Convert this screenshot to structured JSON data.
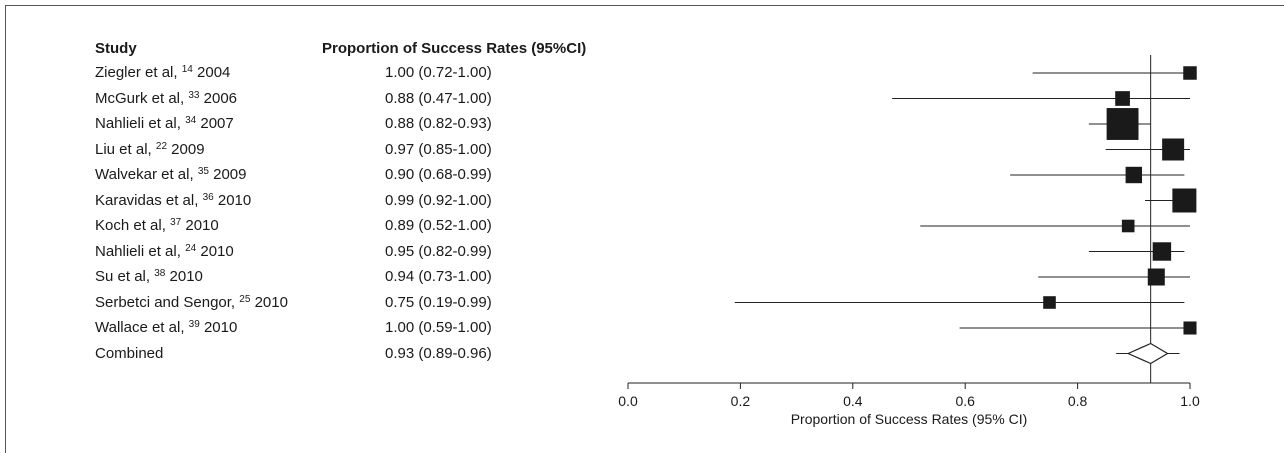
{
  "chart_data": {
    "type": "forest",
    "headers": {
      "study": "Study",
      "estimate": "Proportion of Success Rates (95%CI)"
    },
    "xlabel": "Proportion of Success Rates (95% CI)",
    "xlim": [
      0.0,
      1.0
    ],
    "xticks": [
      "0.0",
      "0.2",
      "0.4",
      "0.6",
      "0.8",
      "1.0"
    ],
    "reference_line": 0.93,
    "studies": [
      {
        "author": "Ziegler et al,",
        "ref": "14",
        "year": "2004",
        "estimate_text": "1.00 (0.72-1.00)",
        "estimate": 1.0,
        "lower": 0.72,
        "upper": 1.0,
        "weight": 1
      },
      {
        "author": "McGurk et al,",
        "ref": "33",
        "year": "2006",
        "estimate_text": "0.88 (0.47-1.00)",
        "estimate": 0.88,
        "lower": 0.47,
        "upper": 1.0,
        "weight": 1.3
      },
      {
        "author": "Nahlieli et al,",
        "ref": "34",
        "year": "2007",
        "estimate_text": "0.88 (0.82-0.93)",
        "estimate": 0.88,
        "lower": 0.82,
        "upper": 0.93,
        "weight": 10
      },
      {
        "author": "Liu et al,",
        "ref": "22",
        "year": "2009",
        "estimate_text": "0.97 (0.85-1.00)",
        "estimate": 0.97,
        "lower": 0.85,
        "upper": 1.0,
        "weight": 4
      },
      {
        "author": "Walvekar et al,",
        "ref": "35",
        "year": "2009",
        "estimate_text": "0.90 (0.68-0.99)",
        "estimate": 0.9,
        "lower": 0.68,
        "upper": 0.99,
        "weight": 1.8
      },
      {
        "author": "Karavidas et al,",
        "ref": "36",
        "year": "2010",
        "estimate_text": "0.99 (0.92-1.00)",
        "estimate": 0.99,
        "lower": 0.92,
        "upper": 1.0,
        "weight": 5
      },
      {
        "author": "Koch et al,",
        "ref": "37",
        "year": "2010",
        "estimate_text": "0.89 (0.52-1.00)",
        "estimate": 0.89,
        "lower": 0.52,
        "upper": 1.0,
        "weight": 0.8
      },
      {
        "author": "Nahlieli et al,",
        "ref": "24",
        "year": "2010",
        "estimate_text": "0.95 (0.82-0.99)",
        "estimate": 0.95,
        "lower": 0.82,
        "upper": 0.99,
        "weight": 2.5
      },
      {
        "author": "Su et al,",
        "ref": "38",
        "year": "2010",
        "estimate_text": "0.94 (0.73-1.00)",
        "estimate": 0.94,
        "lower": 0.73,
        "upper": 1.0,
        "weight": 2
      },
      {
        "author": "Serbetci and Sengor,",
        "ref": "25",
        "year": "2010",
        "estimate_text": "0.75 (0.19-0.99)",
        "estimate": 0.75,
        "lower": 0.19,
        "upper": 0.99,
        "weight": 0.8
      },
      {
        "author": "Wallace et al,",
        "ref": "39",
        "year": "2010",
        "estimate_text": "1.00 (0.59-1.00)",
        "estimate": 1.0,
        "lower": 0.59,
        "upper": 1.0,
        "weight": 0.9
      }
    ],
    "combined": {
      "label": "Combined",
      "estimate_text": "0.93 (0.89-0.96)",
      "estimate": 0.93,
      "lower": 0.89,
      "upper": 0.96
    }
  }
}
